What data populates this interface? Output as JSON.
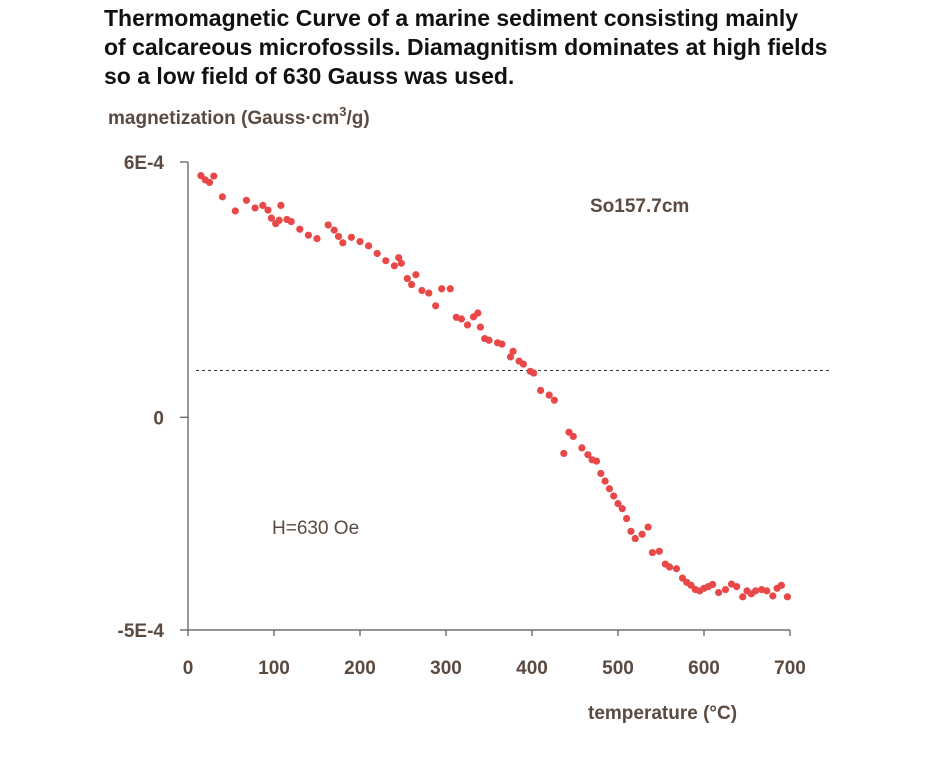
{
  "title_lines": [
    "Thermomagnetic Curve of a marine sediment consisting mainly",
    "of calcareous microfossils. Diamagnitism dominates at high fields",
    "so a low field of 630 Gauss was used."
  ],
  "chart_data": {
    "type": "scatter",
    "title": "Thermomagnetic Curve of a marine sediment consisting mainly of calcareous microfossils. Diamagnitism dominates at high fields so a low field of 630 Gauss was used.",
    "ylabel_main": "magnetization (Gauss·cm",
    "ylabel_sup": "3",
    "ylabel_tail": "/g)",
    "xlabel": "temperature (°C)",
    "xlim": [
      0,
      700
    ],
    "ylim": [
      -0.0005,
      0.0006
    ],
    "x_ticks": [
      "0",
      "100",
      "200",
      "300",
      "400",
      "500",
      "600",
      "700"
    ],
    "y_ticks": [
      {
        "value": 0.0006,
        "label": "6E-4"
      },
      {
        "value": 0,
        "label": "0"
      },
      {
        "value": -0.0005,
        "label": "-5E-4"
      }
    ],
    "reference_line": {
      "y": 0.00011,
      "style": "dashed"
    },
    "annotations": {
      "sample": "So157.7cm",
      "field": "H=630 Oe"
    },
    "grid": false,
    "color": "#e84848",
    "series": [
      {
        "x": [
          15,
          20,
          25,
          30,
          40,
          55,
          68,
          78,
          87,
          93,
          97,
          102,
          106,
          108,
          115,
          120,
          130,
          140,
          150,
          163,
          170,
          175,
          180,
          190,
          200,
          210,
          220,
          230,
          240,
          245,
          248,
          255,
          260,
          265,
          272,
          280,
          288,
          295,
          305,
          312,
          318,
          325,
          332,
          337,
          340,
          345,
          350,
          360,
          365,
          375,
          378,
          385,
          390,
          398,
          402,
          410,
          420,
          426,
          437,
          443,
          448,
          458,
          465,
          470,
          475,
          480,
          485,
          490,
          495,
          500,
          505,
          510,
          515,
          520,
          528,
          535,
          540,
          548,
          555,
          560,
          568,
          575,
          580,
          585,
          590,
          595,
          600,
          605,
          610,
          617,
          625,
          632,
          638,
          645,
          650,
          655,
          660,
          667,
          673,
          680,
          685,
          690,
          697
        ],
        "y": [
          0.000568,
          0.000558,
          0.000552,
          0.000567,
          0.000518,
          0.000485,
          0.00051,
          0.000492,
          0.000498,
          0.000487,
          0.000468,
          0.000455,
          0.000463,
          0.000498,
          0.000465,
          0.00046,
          0.000442,
          0.000428,
          0.00042,
          0.000452,
          0.00044,
          0.000425,
          0.00041,
          0.000423,
          0.000413,
          0.000403,
          0.000385,
          0.000368,
          0.000356,
          0.000375,
          0.000362,
          0.000326,
          0.000312,
          0.000335,
          0.000298,
          0.000292,
          0.000262,
          0.000302,
          0.000302,
          0.000235,
          0.000231,
          0.000217,
          0.000236,
          0.000245,
          0.000212,
          0.000185,
          0.000181,
          0.000175,
          0.000172,
          0.000142,
          0.000155,
          0.000132,
          0.000125,
          0.000108,
          0.000104,
          6.3e-05,
          5.2e-05,
          4e-05,
          -8.5e-05,
          -3.5e-05,
          -4.5e-05,
          -7.2e-05,
          -8.8e-05,
          -0.0001,
          -0.000103,
          -0.000132,
          -0.00015,
          -0.000168,
          -0.000185,
          -0.000203,
          -0.000215,
          -0.000238,
          -0.000268,
          -0.000285,
          -0.000275,
          -0.000258,
          -0.000318,
          -0.000315,
          -0.000345,
          -0.000352,
          -0.000356,
          -0.000378,
          -0.000388,
          -0.000395,
          -0.000405,
          -0.000408,
          -0.000402,
          -0.000398,
          -0.000393,
          -0.000412,
          -0.000405,
          -0.000392,
          -0.000398,
          -0.000422,
          -0.000408,
          -0.000415,
          -0.000408,
          -0.000405,
          -0.000408,
          -0.00042,
          -0.000402,
          -0.000395,
          -0.000422
        ]
      }
    ]
  }
}
